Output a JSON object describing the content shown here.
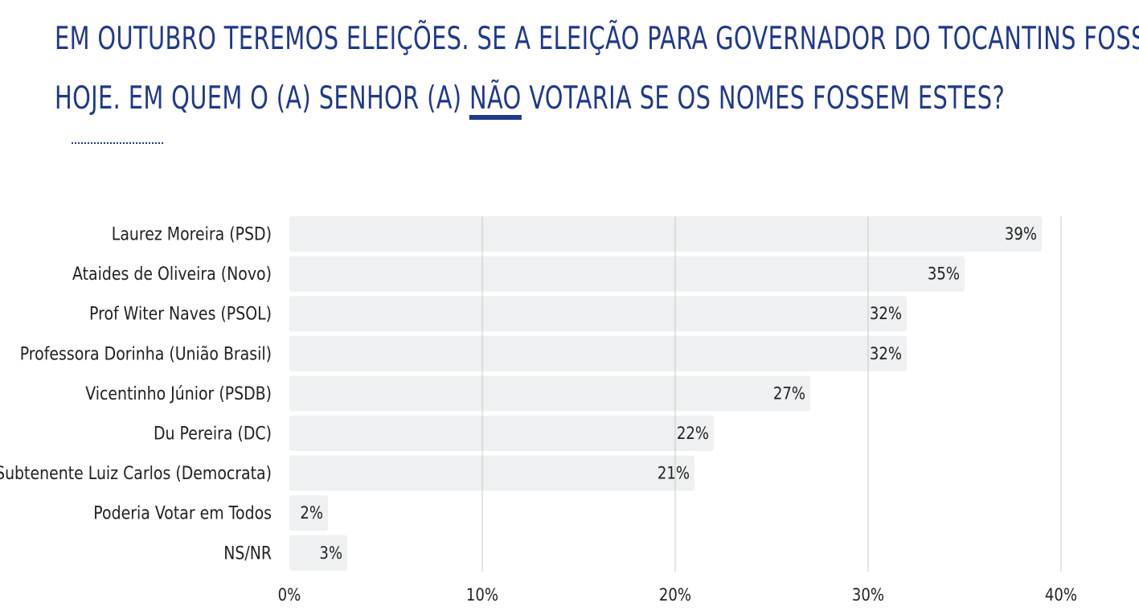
{
  "title": {
    "line1": "EM OUTUBRO TEREMOS ELEIÇÕES. SE A ELEIÇÃO PARA GOVERNADOR DO TOCANTINS FOSSE",
    "line2_start": "HOJE. EM QUEM O (A) SENHOR (A) ",
    "line2_emph": "NÃO",
    "line2_end": " VOTARIA SE OS NOMES FOSSEM ESTES?"
  },
  "colors": {
    "title": "#1f3a8c",
    "bar": "#eef0f1",
    "grid": "#c8c8c8",
    "label": "#222222"
  },
  "chart_data": {
    "type": "bar",
    "orientation": "horizontal",
    "categories": [
      "Laurez Moreira (PSD)",
      "Ataides de Oliveira (Novo)",
      "Prof Witer Naves (PSOL)",
      "Professora Dorinha (União Brasil)",
      "Vicentinho Júnior (PSDB)",
      "Du Pereira (DC)",
      "Subtenente Luiz Carlos (Democrata)",
      "Poderia Votar em Todos",
      "NS/NR"
    ],
    "values": [
      39,
      35,
      32,
      32,
      27,
      22,
      21,
      2,
      3
    ],
    "data_labels": [
      "39%",
      "35%",
      "32%",
      "32%",
      "27%",
      "22%",
      "21%",
      "2%",
      "3%"
    ],
    "xlim": [
      0,
      40
    ],
    "xticks": [
      0,
      10,
      20,
      30,
      40
    ],
    "xtick_labels": [
      "0%",
      "10%",
      "20%",
      "30%",
      "40%"
    ],
    "grid": true,
    "legend": "none"
  }
}
